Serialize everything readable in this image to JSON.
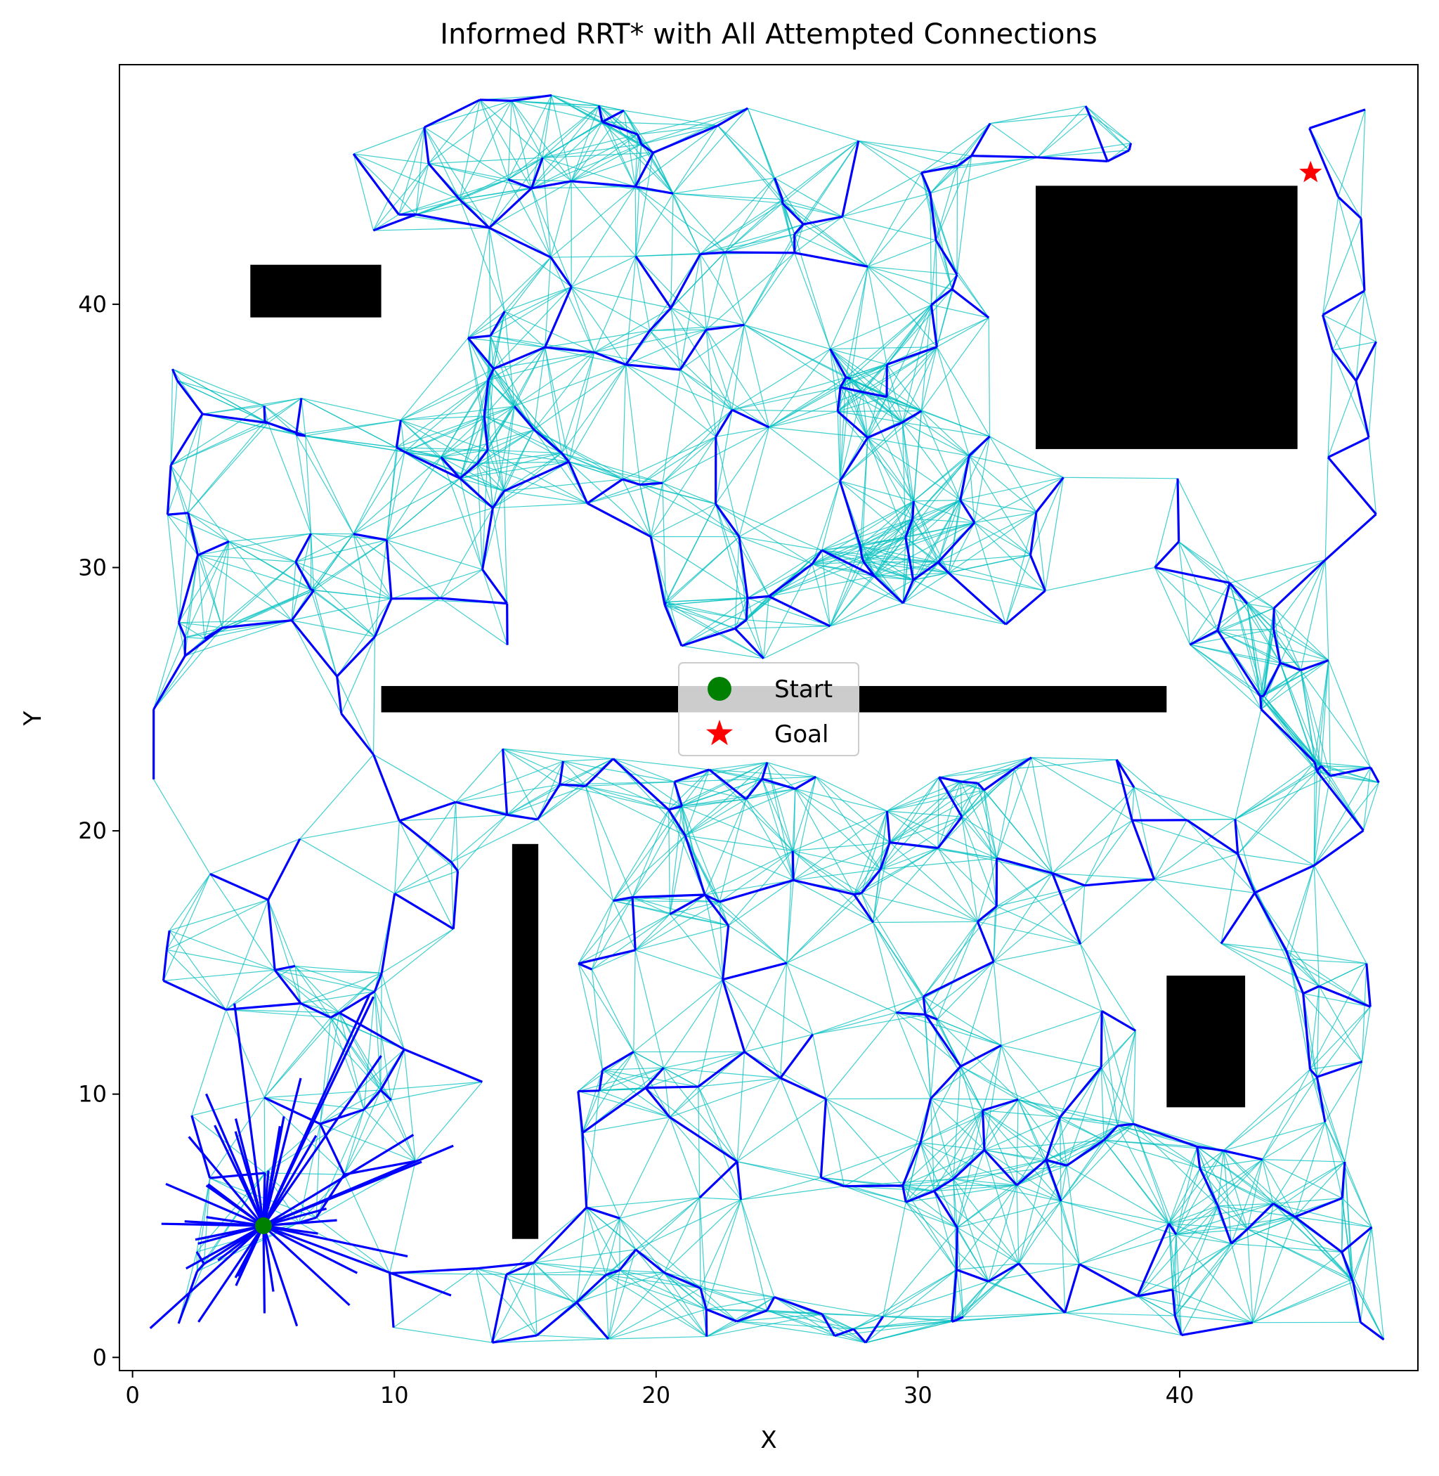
{
  "chart_data": {
    "type": "scatter",
    "title": "Informed RRT* with All Attempted Connections",
    "xlabel": "X",
    "ylabel": "Y",
    "xlim": [
      -0.5,
      49.1
    ],
    "ylim": [
      -0.5,
      49.1
    ],
    "xticks": [
      0,
      10,
      20,
      30,
      40
    ],
    "yticks": [
      0,
      10,
      20,
      30,
      40
    ],
    "grid": false,
    "legend": {
      "placement": "center",
      "entries": [
        {
          "label": "Start",
          "marker": "circle",
          "color": "#008000"
        },
        {
          "label": "Goal",
          "marker": "star",
          "color": "#ff0000"
        }
      ]
    },
    "start": {
      "x": 5,
      "y": 5
    },
    "goal": {
      "x": 45,
      "y": 45
    },
    "obstacles": [
      {
        "x": 4.5,
        "y": 39.5,
        "w": 5,
        "h": 2
      },
      {
        "x": 34.5,
        "y": 34.5,
        "w": 10,
        "h": 10
      },
      {
        "x": 9.5,
        "y": 24.5,
        "w": 30,
        "h": 1
      },
      {
        "x": 14.5,
        "y": 4.5,
        "w": 1,
        "h": 15
      },
      {
        "x": 39.5,
        "y": 9.5,
        "w": 3,
        "h": 5
      }
    ],
    "colors": {
      "tree_edges": "#0000ff",
      "attempted_edges": "#00bfbf",
      "rejected_edges": "#000000",
      "obstacles": "#000000",
      "start": "#008000",
      "goal": "#ff0000"
    }
  }
}
